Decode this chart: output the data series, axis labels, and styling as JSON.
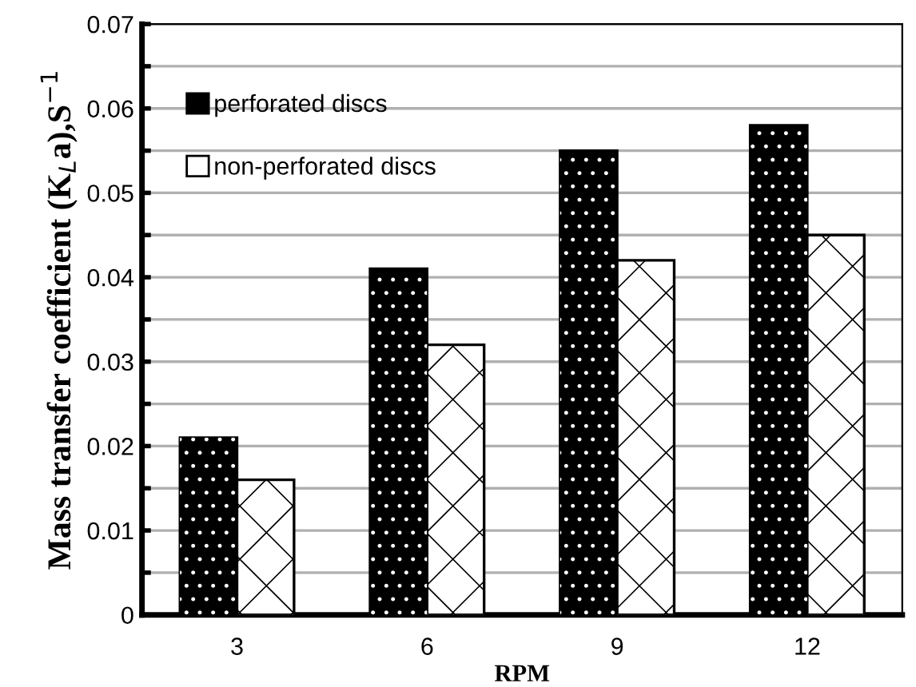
{
  "chart_data": {
    "type": "bar",
    "xlabel": "RPM",
    "ylabel": "Mass transfer coefficient (K$_{L}$a),S$^{−1}$",
    "categories": [
      "3",
      "6",
      "9",
      "12"
    ],
    "series": [
      {
        "name": "perforated discs",
        "color": "#000000",
        "values": [
          0.021,
          0.041,
          0.055,
          0.058
        ]
      },
      {
        "name": "non-perforated discs",
        "color": "#ffffff",
        "values": [
          0.016,
          0.032,
          0.042,
          0.045
        ]
      }
    ],
    "ylim": [
      0,
      0.07
    ],
    "yticks": [
      0,
      {
        "value": 0.005,
        "label": null
      },
      0.01,
      {
        "value": 0.015,
        "label": null
      },
      0.02,
      {
        "value": 0.025,
        "label": null
      },
      0.03,
      {
        "value": 0.035,
        "label": null
      },
      0.04,
      {
        "value": 0.045,
        "label": null
      },
      0.05,
      {
        "value": 0.055,
        "label": null
      },
      0.06,
      {
        "value": 0.065,
        "label": null
      },
      0.07
    ],
    "grid": "y",
    "legend": "top left"
  }
}
